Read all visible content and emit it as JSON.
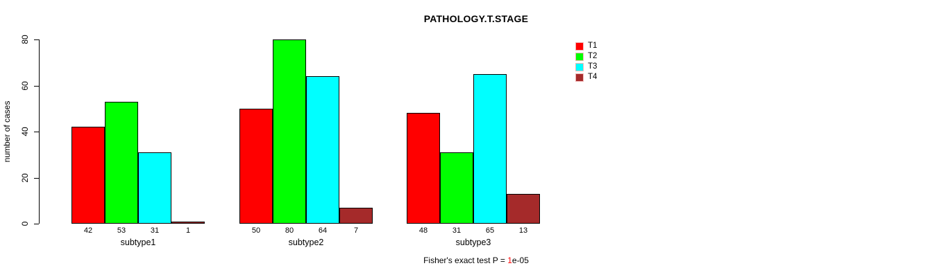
{
  "chart_data": {
    "type": "bar",
    "grouped": true,
    "title": "PATHOLOGY.T.STAGE",
    "ylabel": "number of cases",
    "xlabel": "",
    "ylim": [
      0,
      80
    ],
    "yticks": [
      0,
      20,
      40,
      60,
      80
    ],
    "grid": false,
    "legend_position": "right",
    "bar_value_labels": true,
    "categories": [
      "subtype1",
      "subtype2",
      "subtype3"
    ],
    "series": [
      {
        "name": "T1",
        "color": "#FF0000",
        "values": [
          42,
          50,
          48
        ]
      },
      {
        "name": "T2",
        "color": "#00FF00",
        "values": [
          53,
          80,
          31
        ]
      },
      {
        "name": "T3",
        "color": "#00FFFF",
        "values": [
          31,
          64,
          65
        ]
      },
      {
        "name": "T4",
        "color": "#A52A2A",
        "values": [
          1,
          7,
          13
        ]
      }
    ],
    "annotation": {
      "prefix": "Fisher's exact test P = ",
      "value": "1",
      "suffix": "e-05",
      "value_color": "#FF0000"
    }
  }
}
